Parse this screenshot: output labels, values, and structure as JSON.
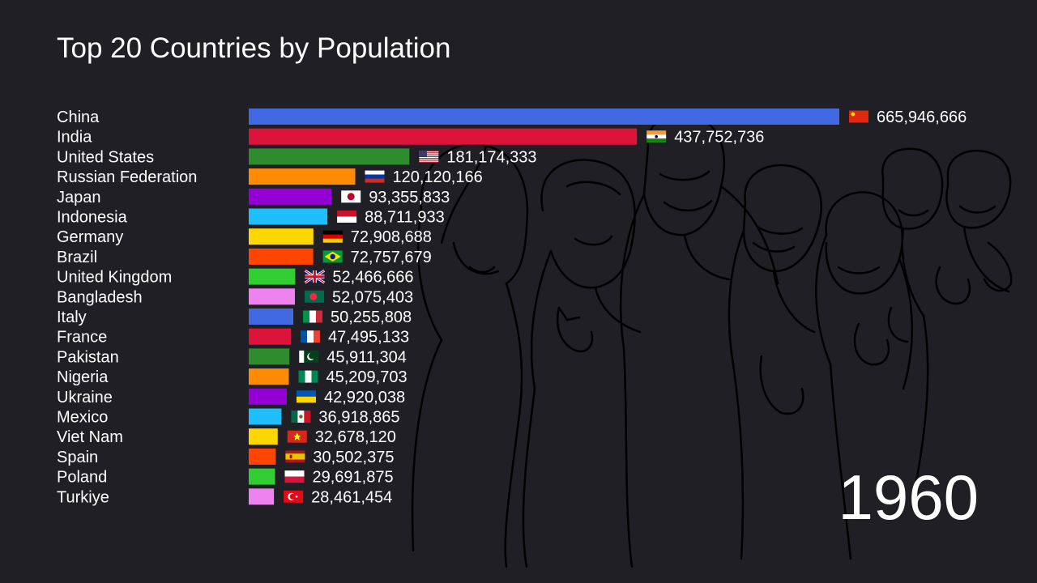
{
  "chart_data": {
    "type": "bar",
    "orientation": "horizontal",
    "title": "Top 20 Countries by Population",
    "period_label": "1960",
    "categories": [
      "China",
      "India",
      "United States",
      "Russian Federation",
      "Japan",
      "Indonesia",
      "Germany",
      "Brazil",
      "United Kingdom",
      "Bangladesh",
      "Italy",
      "France",
      "Pakistan",
      "Nigeria",
      "Ukraine",
      "Mexico",
      "Viet Nam",
      "Spain",
      "Poland",
      "Turkiye"
    ],
    "values": [
      665946666,
      437752736,
      181174333,
      120120166,
      93355833,
      88711933,
      72908688,
      72757679,
      52466666,
      52075403,
      50255808,
      47495133,
      45911304,
      45209703,
      42920038,
      36918865,
      32678120,
      30502375,
      29691875,
      28461454
    ],
    "value_labels": [
      "665,946,666",
      "437,752,736",
      "181,174,333",
      "120,120,166",
      "93,355,833",
      "88,711,933",
      "72,908,688",
      "72,757,679",
      "52,466,666",
      "52,075,403",
      "50,255,808",
      "47,495,133",
      "45,911,304",
      "45,209,703",
      "42,920,038",
      "36,918,865",
      "32,678,120",
      "30,502,375",
      "29,691,875",
      "28,461,454"
    ],
    "bar_colors": [
      "#4169e1",
      "#dc143c",
      "#2e8b2e",
      "#ff8c00",
      "#9400d3",
      "#1ebeff",
      "#ffd700",
      "#ff4500",
      "#32cd32",
      "#ee82ee",
      "#4169e1",
      "#dc143c",
      "#2e8b2e",
      "#ff8c00",
      "#9400d3",
      "#1ebeff",
      "#ffd700",
      "#ff4500",
      "#32cd32",
      "#ee82ee"
    ],
    "flag_icons": [
      "china-flag-icon",
      "india-flag-icon",
      "usa-flag-icon",
      "russia-flag-icon",
      "japan-flag-icon",
      "indonesia-flag-icon",
      "germany-flag-icon",
      "brazil-flag-icon",
      "uk-flag-icon",
      "bangladesh-flag-icon",
      "italy-flag-icon",
      "france-flag-icon",
      "pakistan-flag-icon",
      "nigeria-flag-icon",
      "ukraine-flag-icon",
      "mexico-flag-icon",
      "vietnam-flag-icon",
      "spain-flag-icon",
      "poland-flag-icon",
      "turkiye-flag-icon"
    ],
    "grid": false,
    "legend": "none"
  },
  "colors": {
    "background": "#1f1f25",
    "text": "#ffffff",
    "line_art": "#000000"
  }
}
